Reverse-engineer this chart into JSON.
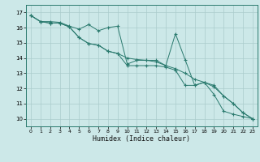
{
  "xlabel": "Humidex (Indice chaleur)",
  "background_color": "#cce8e8",
  "grid_color": "#aacccc",
  "line_color": "#2a7a6e",
  "xlim": [
    -0.5,
    23.5
  ],
  "ylim": [
    9.5,
    17.5
  ],
  "yticks": [
    10,
    11,
    12,
    13,
    14,
    15,
    16,
    17
  ],
  "xticks": [
    0,
    1,
    2,
    3,
    4,
    5,
    6,
    7,
    8,
    9,
    10,
    11,
    12,
    13,
    14,
    15,
    16,
    17,
    18,
    19,
    20,
    21,
    22,
    23
  ],
  "series": [
    {
      "x": [
        0,
        1,
        2,
        3,
        4,
        5,
        6,
        7,
        8,
        9,
        10,
        11,
        12,
        13,
        14,
        15,
        16,
        17,
        18,
        19,
        20,
        21,
        22,
        23
      ],
      "y": [
        16.8,
        16.4,
        16.4,
        16.35,
        16.1,
        15.9,
        16.2,
        15.8,
        16.0,
        16.1,
        13.6,
        13.85,
        13.85,
        13.85,
        13.5,
        15.6,
        13.9,
        12.2,
        12.4,
        11.6,
        10.5,
        10.3,
        10.15,
        10.0
      ]
    },
    {
      "x": [
        0,
        1,
        2,
        3,
        4,
        5,
        6,
        7,
        8,
        9,
        10,
        11,
        12,
        13,
        14,
        15,
        16,
        17,
        18,
        19,
        20,
        21,
        22,
        23
      ],
      "y": [
        16.8,
        16.4,
        16.3,
        16.3,
        16.05,
        15.35,
        14.95,
        14.85,
        14.45,
        14.3,
        14.0,
        13.9,
        13.85,
        13.75,
        13.5,
        13.3,
        13.0,
        12.6,
        12.4,
        12.1,
        11.5,
        11.0,
        10.4,
        10.0
      ]
    },
    {
      "x": [
        0,
        1,
        2,
        3,
        4,
        5,
        6,
        7,
        8,
        9,
        10,
        11,
        12,
        13,
        14,
        15,
        16,
        17,
        18,
        19,
        20,
        21,
        22,
        23
      ],
      "y": [
        16.8,
        16.4,
        16.3,
        16.3,
        16.05,
        15.35,
        14.95,
        14.85,
        14.45,
        14.3,
        13.5,
        13.5,
        13.5,
        13.5,
        13.4,
        13.2,
        12.2,
        12.2,
        12.4,
        12.2,
        11.5,
        11.0,
        10.4,
        10.0
      ]
    }
  ]
}
